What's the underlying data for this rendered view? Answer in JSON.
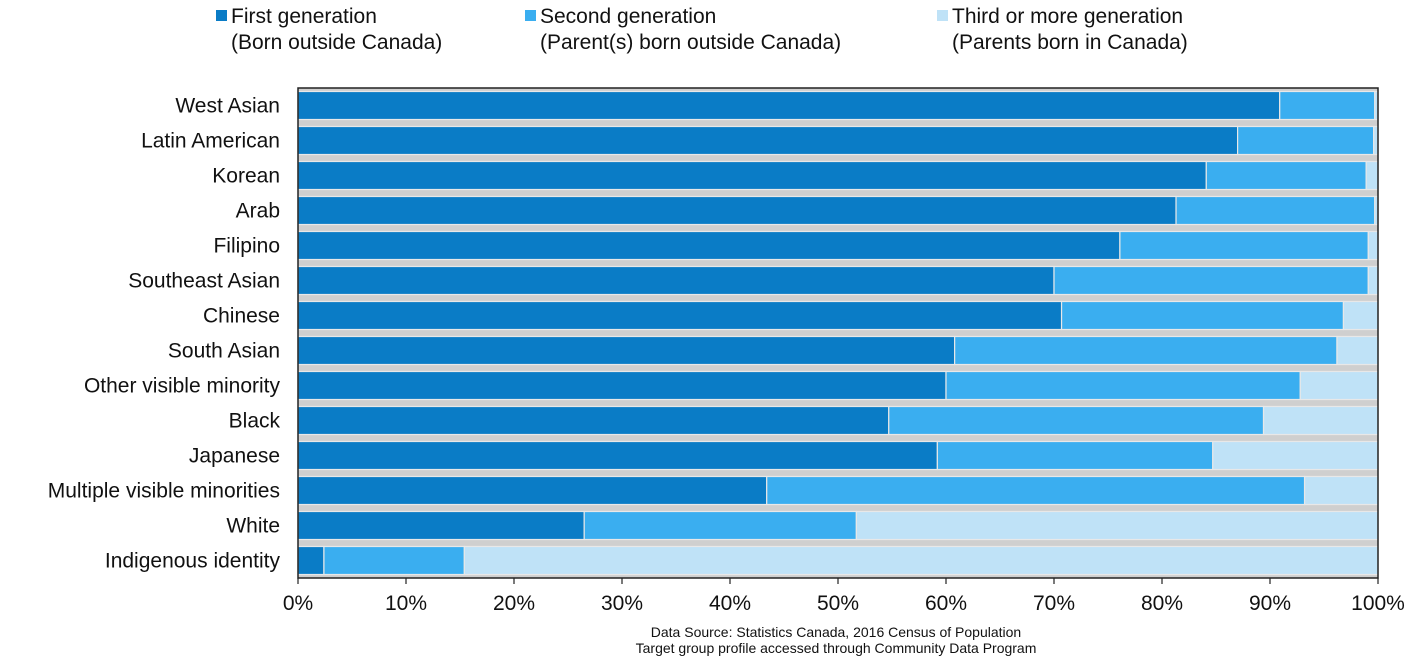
{
  "legend": {
    "items": [
      {
        "line1": "First generation",
        "line2": "(Born outside Canada)",
        "color": "#0a7cc6"
      },
      {
        "line1": "Second generation",
        "line2": "(Parent(s) born outside Canada)",
        "color": "#3aaef0"
      },
      {
        "line1": "Third or more generation",
        "line2": "(Parents born in Canada)",
        "color": "#bfe2f7"
      }
    ]
  },
  "source": {
    "line1": "Data Source: Statistics Canada, 2016 Census of Population",
    "line2": "Target group profile accessed through Community Data Program"
  },
  "chart_data": {
    "type": "bar",
    "orientation": "horizontal",
    "stacked": true,
    "normalized": true,
    "categories": [
      "West Asian",
      "Latin American",
      "Korean",
      "Arab",
      "Filipino",
      "Southeast Asian",
      "Chinese",
      "South Asian",
      "Other visible minority",
      "Black",
      "Japanese",
      "Multiple visible minorities",
      "White",
      "Indigenous identity"
    ],
    "series": [
      {
        "name": "First generation (Born outside Canada)",
        "color": "#0a7cc6",
        "values": [
          90.9,
          87.0,
          84.1,
          81.3,
          76.1,
          70.0,
          70.7,
          60.8,
          60.0,
          54.7,
          59.2,
          43.4,
          26.5,
          2.4
        ]
      },
      {
        "name": "Second generation (Parent(s) born outside Canada)",
        "color": "#3aaef0",
        "values": [
          8.8,
          12.6,
          14.8,
          18.4,
          23.0,
          29.1,
          26.1,
          35.4,
          32.8,
          34.7,
          25.5,
          49.8,
          25.2,
          13.0
        ]
      },
      {
        "name": "Third or more generation (Parents born in Canada)",
        "color": "#bfe2f7",
        "values": [
          0.3,
          0.4,
          1.1,
          0.3,
          0.9,
          0.9,
          3.2,
          3.8,
          7.2,
          10.6,
          15.3,
          6.8,
          48.3,
          84.6
        ]
      }
    ],
    "xticks": [
      "0%",
      "10%",
      "20%",
      "30%",
      "40%",
      "50%",
      "60%",
      "70%",
      "80%",
      "90%",
      "100%"
    ],
    "xlim": [
      0,
      100
    ],
    "grid": false,
    "legend_position": "top",
    "title": "",
    "xlabel": "",
    "ylabel": ""
  }
}
